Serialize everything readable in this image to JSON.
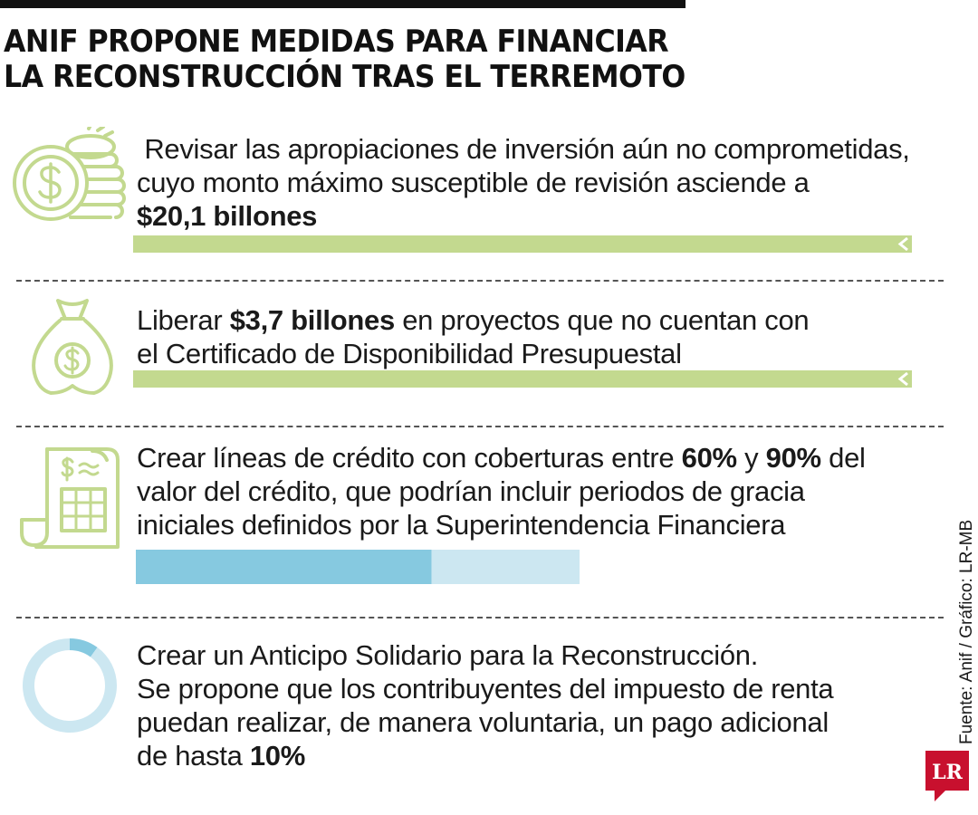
{
  "title": {
    "line1": "ANIF PROPONE MEDIDAS PARA FINANCIAR",
    "line2": "LA RECONSTRUCCIÓN TRAS EL TERREMOTO"
  },
  "colors": {
    "accent_green": "#c3d98f",
    "bar_dark_blue": "#86c9e0",
    "bar_light_blue": "#cce7f1",
    "logo_red": "#c8102e"
  },
  "items": [
    {
      "icon": "coins-stack-icon",
      "line1": " Revisar las apropiaciones de inversión aún no comprometidas,",
      "line2": "cuyo monto máximo susceptible de revisión asciende a",
      "amount": "$20,1 billones"
    },
    {
      "icon": "money-bag-icon",
      "line1_pre": "Liberar ",
      "amount": "$3,7 billones",
      "line1_post": " en proyectos que no cuentan con",
      "line2": "el Certificado de Disponibilidad Presupuestal"
    },
    {
      "icon": "receipt-icon",
      "line1_pre": "Crear líneas de crédito con coberturas entre ",
      "low": "60%",
      "mid": " y ",
      "high": "90%",
      "line1_post": " del",
      "line2": "valor del crédito, que podrían incluir periodos de gracia",
      "line3": "iniciales definidos por la Superintendencia Financiera"
    },
    {
      "icon": "donut-chart-icon",
      "line1": "Crear un Anticipo Solidario para la Reconstrucción.",
      "line2": "Se propone que los contribuyentes del impuesto de renta",
      "line3": "puedan realizar, de manera voluntaria, un pago adicional",
      "line4_pre": "de hasta ",
      "pct": "10%"
    }
  ],
  "chart_data": [
    {
      "type": "bar",
      "orientation": "horizontal",
      "stacked": true,
      "unit": "%",
      "segments": [
        {
          "value": 60,
          "color": "#86c9e0"
        },
        {
          "value": 30,
          "color": "#cce7f1"
        }
      ],
      "xlim": [
        0,
        90
      ]
    },
    {
      "type": "pie",
      "donut": true,
      "unit": "%",
      "slices": [
        {
          "value": 10,
          "color": "#86c9e0"
        },
        {
          "value": 90,
          "color": "#cce7f1"
        }
      ]
    }
  ],
  "source": "Fuente: Anif / Gráfico: LR-MB",
  "logo": {
    "text": "LR"
  }
}
